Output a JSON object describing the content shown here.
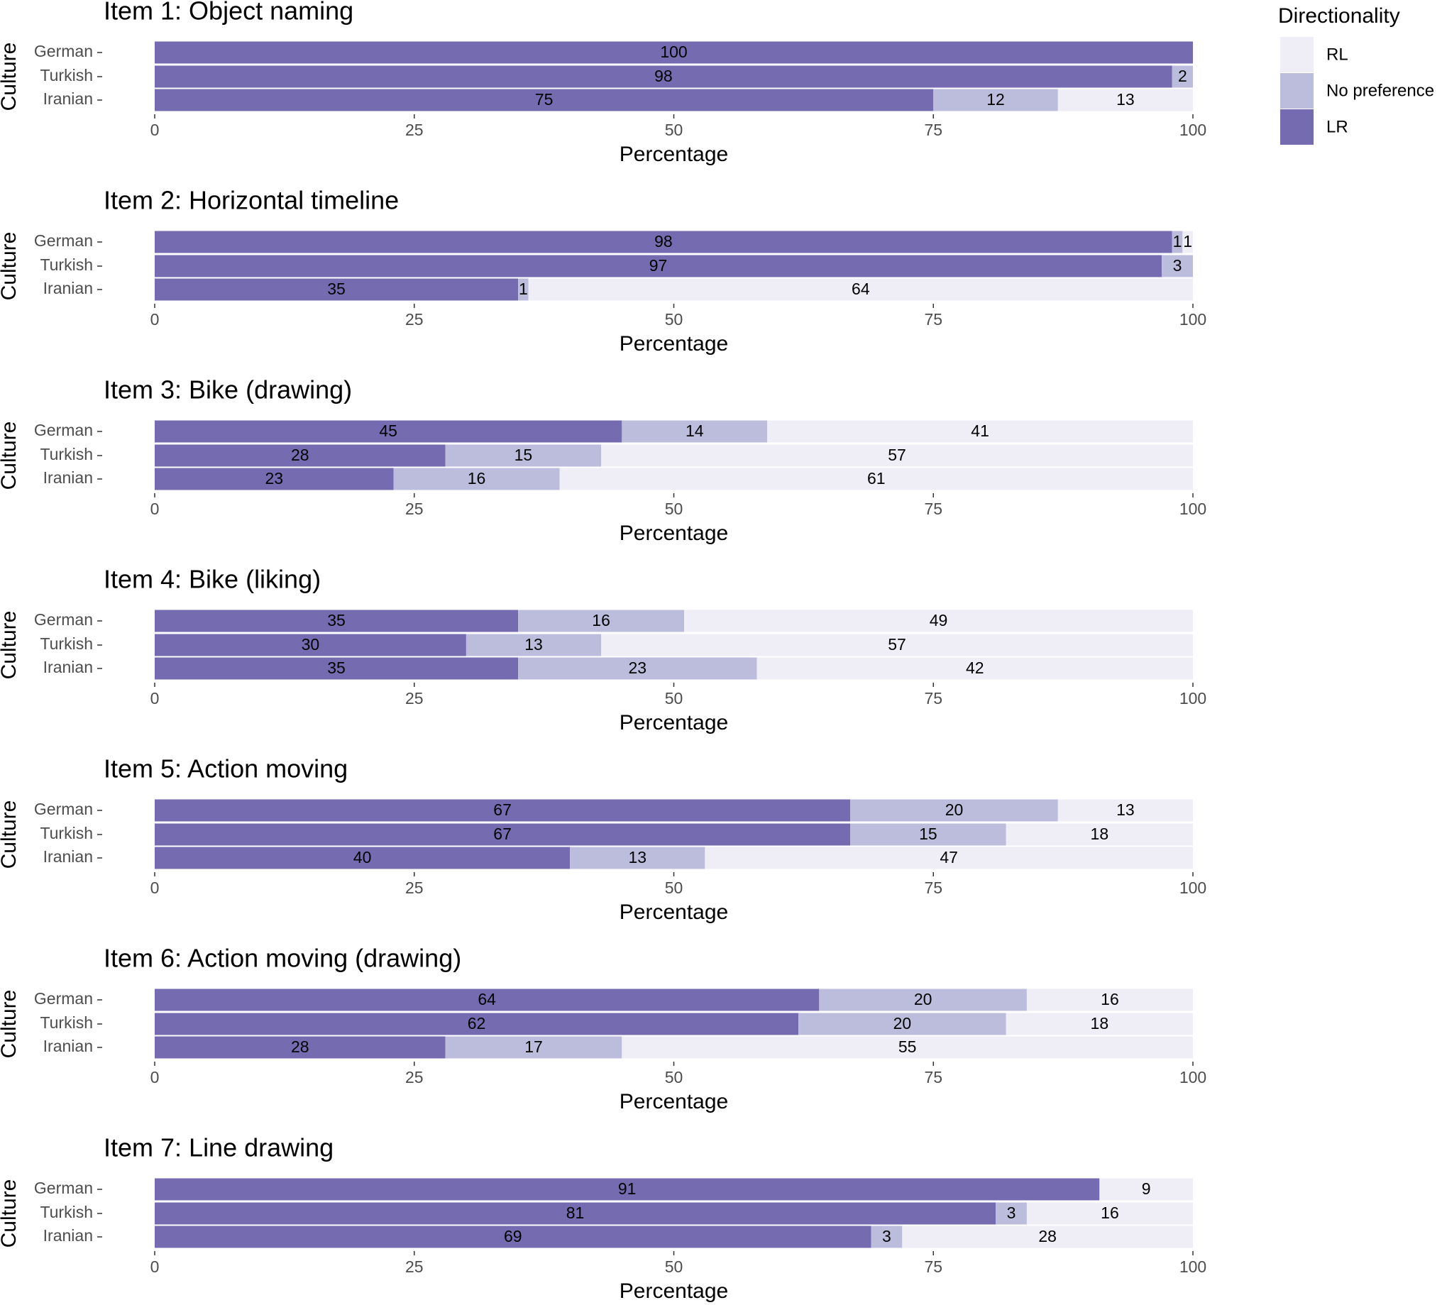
{
  "legend": {
    "title": "Directionality",
    "position": "right"
  },
  "chart_data": [
    {
      "type": "bar",
      "orientation": "horizontal",
      "stacked": true,
      "title": "Item 1: Object naming",
      "xlabel": "Percentage",
      "ylabel": "Culture",
      "categories": [
        "German",
        "Turkish",
        "Iranian"
      ],
      "xlim": [
        0,
        100
      ],
      "xticks": [
        0,
        25,
        50,
        75,
        100
      ],
      "series": [
        {
          "name": "LR",
          "color": "#756bb1",
          "values": [
            100,
            98,
            75
          ]
        },
        {
          "name": "No preference",
          "color": "#bcbddc",
          "values": [
            null,
            2,
            12
          ]
        },
        {
          "name": "RL",
          "color": "#efedf5",
          "values": [
            null,
            null,
            13
          ]
        }
      ]
    },
    {
      "type": "bar",
      "orientation": "horizontal",
      "stacked": true,
      "title": "Item 2: Horizontal timeline",
      "xlabel": "Percentage",
      "ylabel": "Culture",
      "categories": [
        "German",
        "Turkish",
        "Iranian"
      ],
      "xlim": [
        0,
        100
      ],
      "xticks": [
        0,
        25,
        50,
        75,
        100
      ],
      "series": [
        {
          "name": "LR",
          "color": "#756bb1",
          "values": [
            98,
            97,
            35
          ]
        },
        {
          "name": "No preference",
          "color": "#bcbddc",
          "values": [
            1,
            3,
            1
          ]
        },
        {
          "name": "RL",
          "color": "#efedf5",
          "values": [
            1,
            null,
            64
          ]
        }
      ]
    },
    {
      "type": "bar",
      "orientation": "horizontal",
      "stacked": true,
      "title": "Item 3: Bike (drawing)",
      "xlabel": "Percentage",
      "ylabel": "Culture",
      "categories": [
        "German",
        "Turkish",
        "Iranian"
      ],
      "xlim": [
        0,
        100
      ],
      "xticks": [
        0,
        25,
        50,
        75,
        100
      ],
      "series": [
        {
          "name": "LR",
          "color": "#756bb1",
          "values": [
            45,
            28,
            23
          ]
        },
        {
          "name": "No preference",
          "color": "#bcbddc",
          "values": [
            14,
            15,
            16
          ]
        },
        {
          "name": "RL",
          "color": "#efedf5",
          "values": [
            41,
            57,
            61
          ]
        }
      ]
    },
    {
      "type": "bar",
      "orientation": "horizontal",
      "stacked": true,
      "title": "Item 4: Bike (liking)",
      "xlabel": "Percentage",
      "ylabel": "Culture",
      "categories": [
        "German",
        "Turkish",
        "Iranian"
      ],
      "xlim": [
        0,
        100
      ],
      "xticks": [
        0,
        25,
        50,
        75,
        100
      ],
      "series": [
        {
          "name": "LR",
          "color": "#756bb1",
          "values": [
            35,
            30,
            35
          ]
        },
        {
          "name": "No preference",
          "color": "#bcbddc",
          "values": [
            16,
            13,
            23
          ]
        },
        {
          "name": "RL",
          "color": "#efedf5",
          "values": [
            49,
            57,
            42
          ]
        }
      ]
    },
    {
      "type": "bar",
      "orientation": "horizontal",
      "stacked": true,
      "title": "Item 5: Action moving",
      "xlabel": "Percentage",
      "ylabel": "Culture",
      "categories": [
        "German",
        "Turkish",
        "Iranian"
      ],
      "xlim": [
        0,
        100
      ],
      "xticks": [
        0,
        25,
        50,
        75,
        100
      ],
      "series": [
        {
          "name": "LR",
          "color": "#756bb1",
          "values": [
            67,
            67,
            40
          ]
        },
        {
          "name": "No preference",
          "color": "#bcbddc",
          "values": [
            20,
            15,
            13
          ]
        },
        {
          "name": "RL",
          "color": "#efedf5",
          "values": [
            13,
            18,
            47
          ]
        }
      ]
    },
    {
      "type": "bar",
      "orientation": "horizontal",
      "stacked": true,
      "title": "Item 6: Action moving (drawing)",
      "xlabel": "Percentage",
      "ylabel": "Culture",
      "categories": [
        "German",
        "Turkish",
        "Iranian"
      ],
      "xlim": [
        0,
        100
      ],
      "xticks": [
        0,
        25,
        50,
        75,
        100
      ],
      "series": [
        {
          "name": "LR",
          "color": "#756bb1",
          "values": [
            64,
            62,
            28
          ]
        },
        {
          "name": "No preference",
          "color": "#bcbddc",
          "values": [
            20,
            20,
            17
          ]
        },
        {
          "name": "RL",
          "color": "#efedf5",
          "values": [
            16,
            18,
            55
          ]
        }
      ]
    },
    {
      "type": "bar",
      "orientation": "horizontal",
      "stacked": true,
      "title": "Item 7: Line drawing",
      "xlabel": "Percentage",
      "ylabel": "Culture",
      "categories": [
        "German",
        "Turkish",
        "Iranian"
      ],
      "xlim": [
        0,
        100
      ],
      "xticks": [
        0,
        25,
        50,
        75,
        100
      ],
      "series": [
        {
          "name": "LR",
          "color": "#756bb1",
          "values": [
            91,
            81,
            69
          ]
        },
        {
          "name": "No preference",
          "color": "#bcbddc",
          "values": [
            null,
            3,
            3
          ]
        },
        {
          "name": "RL",
          "color": "#efedf5",
          "values": [
            9,
            16,
            28
          ]
        }
      ]
    }
  ]
}
